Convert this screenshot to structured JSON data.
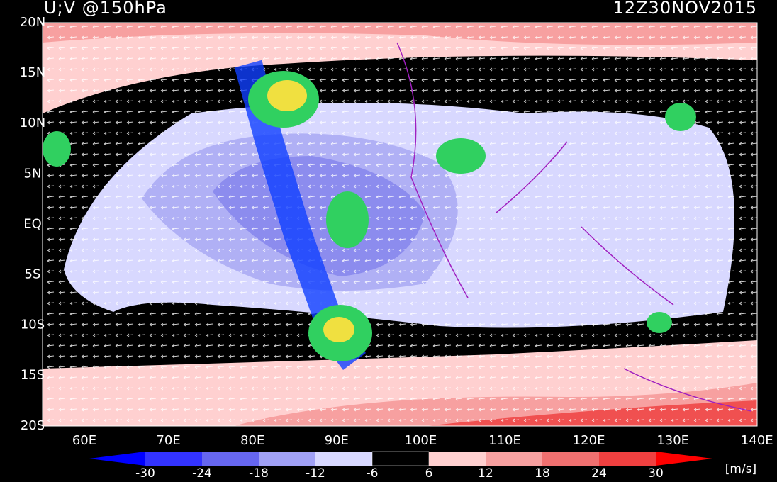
{
  "header": {
    "title": "U;V @150hPa",
    "time": "12Z30NOV2015"
  },
  "map": {
    "lat_labels": [
      "20N",
      "15N",
      "10N",
      "5N",
      "EQ",
      "5S",
      "10S",
      "15S",
      "20S"
    ],
    "lon_labels": [
      "60E",
      "70E",
      "80E",
      "90E",
      "100E",
      "110E",
      "120E",
      "130E",
      "140E"
    ]
  },
  "colorbar": {
    "labels": [
      "-30",
      "-24",
      "-18",
      "-12",
      "-6",
      "6",
      "12",
      "18",
      "24",
      "30"
    ],
    "units": "[m/s]"
  }
}
